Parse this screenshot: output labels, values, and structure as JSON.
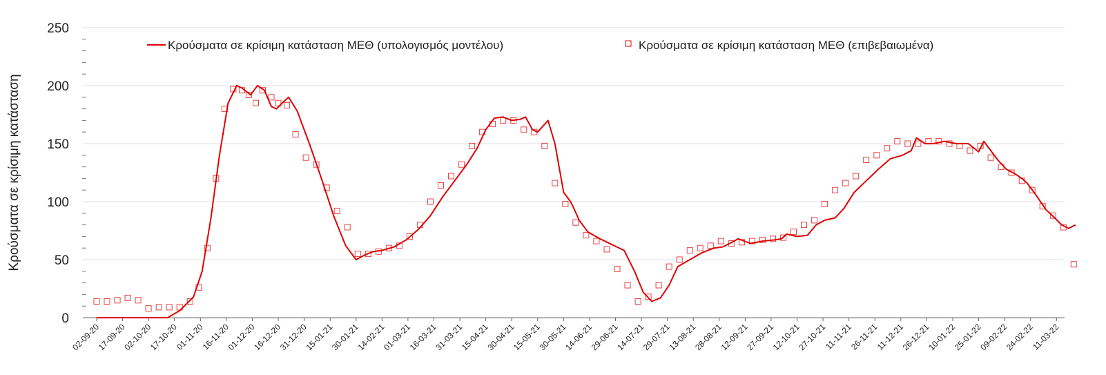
{
  "chart_data": {
    "type": "line",
    "title": "",
    "xlabel": "",
    "ylabel": "Κρούσματα σε κρίσιμη κατάσταση",
    "ylim": [
      0,
      250
    ],
    "yticks": [
      0,
      50,
      100,
      150,
      200,
      250
    ],
    "grid": true,
    "legend_position": "top",
    "xlim": [
      "2020-09-02",
      "2022-03-22"
    ],
    "xtick_labels": [
      "02-09-20",
      "17-09-20",
      "02-10-20",
      "17-10-20",
      "01-11-20",
      "16-11-20",
      "01-12-20",
      "16-12-20",
      "31-12-20",
      "15-01-21",
      "30-01-21",
      "14-02-21",
      "01-03-21",
      "16-03-21",
      "31-03-21",
      "15-04-21",
      "30-04-21",
      "15-05-21",
      "30-05-21",
      "14-06-21",
      "29-06-21",
      "14-07-21",
      "29-07-21",
      "13-08-21",
      "28-08-21",
      "12-09-21",
      "27-09-21",
      "12-10-21",
      "27-10-21",
      "11-11-21",
      "26-11-21",
      "11-12-21",
      "26-12-21",
      "10-01-22",
      "25-01-22",
      "09-02-22",
      "24-02-22",
      "11-03-22"
    ],
    "series": [
      {
        "name": "Κρούσματα σε κρίσιμη κατάσταση ΜΕΘ (υπολογισμός μοντέλου)",
        "style": "line",
        "color": "#e00000",
        "x": [
          "2020-09-02",
          "2020-10-13",
          "2020-10-20",
          "2020-10-28",
          "2020-11-02",
          "2020-11-07",
          "2020-11-12",
          "2020-11-17",
          "2020-11-22",
          "2020-11-25",
          "2020-11-30",
          "2020-12-04",
          "2020-12-08",
          "2020-12-12",
          "2020-12-15",
          "2020-12-19",
          "2020-12-22",
          "2020-12-27",
          "2021-01-03",
          "2021-01-10",
          "2021-01-17",
          "2021-01-24",
          "2021-01-30",
          "2021-02-04",
          "2021-02-09",
          "2021-02-14",
          "2021-02-21",
          "2021-02-28",
          "2021-03-07",
          "2021-03-14",
          "2021-03-21",
          "2021-03-28",
          "2021-04-04",
          "2021-04-10",
          "2021-04-15",
          "2021-04-20",
          "2021-04-25",
          "2021-04-30",
          "2021-05-05",
          "2021-05-08",
          "2021-05-12",
          "2021-05-15",
          "2021-05-18",
          "2021-05-21",
          "2021-05-25",
          "2021-05-30",
          "2021-06-03",
          "2021-06-05",
          "2021-06-08",
          "2021-06-13",
          "2021-06-20",
          "2021-06-27",
          "2021-07-04",
          "2021-07-10",
          "2021-07-15",
          "2021-07-20",
          "2021-07-25",
          "2021-07-30",
          "2021-08-04",
          "2021-08-11",
          "2021-08-18",
          "2021-08-25",
          "2021-08-30",
          "2021-09-03",
          "2021-09-08",
          "2021-09-15",
          "2021-09-22",
          "2021-09-29",
          "2021-10-03",
          "2021-10-06",
          "2021-10-12",
          "2021-10-18",
          "2021-10-23",
          "2021-10-28",
          "2021-11-03",
          "2021-11-08",
          "2021-11-14",
          "2021-11-21",
          "2021-11-28",
          "2021-12-05",
          "2021-12-12",
          "2021-12-17",
          "2021-12-20",
          "2021-12-25",
          "2021-12-30",
          "2022-01-05",
          "2022-01-12",
          "2022-01-19",
          "2022-01-25",
          "2022-01-28",
          "2022-02-01",
          "2022-02-05",
          "2022-02-10",
          "2022-02-15",
          "2022-02-19",
          "2022-02-22",
          "2022-02-27",
          "2022-03-05",
          "2022-03-10",
          "2022-03-14",
          "2022-03-18",
          "2022-03-22"
        ],
        "y": [
          0,
          0,
          6,
          18,
          40,
          85,
          140,
          185,
          200,
          198,
          192,
          200,
          196,
          182,
          180,
          186,
          190,
          178,
          150,
          120,
          88,
          62,
          50,
          54,
          57,
          58,
          61,
          67,
          76,
          88,
          104,
          118,
          132,
          146,
          162,
          172,
          173,
          170,
          171,
          173,
          162,
          160,
          165,
          170,
          150,
          108,
          100,
          94,
          84,
          74,
          68,
          63,
          58,
          40,
          22,
          14,
          17,
          28,
          44,
          50,
          56,
          60,
          61,
          64,
          68,
          64,
          66,
          67,
          68,
          72,
          70,
          71,
          80,
          84,
          86,
          94,
          108,
          118,
          128,
          137,
          140,
          144,
          155,
          150,
          150,
          152,
          150,
          150,
          143,
          152,
          144,
          136,
          128,
          124,
          120,
          116,
          106,
          93,
          86,
          80,
          77,
          80
        ]
      },
      {
        "name": "Κρούσματα σε κρίσιμη κατάσταση ΜΕΘ (επιβεβαιωμένα)",
        "style": "marker",
        "marker": "square",
        "color": "#e00000",
        "x": [
          "2020-09-02",
          "2020-09-08",
          "2020-09-14",
          "2020-09-20",
          "2020-09-26",
          "2020-10-02",
          "2020-10-08",
          "2020-10-14",
          "2020-10-20",
          "2020-10-26",
          "2020-10-31",
          "2020-11-05",
          "2020-11-10",
          "2020-11-15",
          "2020-11-20",
          "2020-11-25",
          "2020-11-29",
          "2020-12-03",
          "2020-12-07",
          "2020-12-12",
          "2020-12-16",
          "2020-12-21",
          "2020-12-26",
          "2021-01-01",
          "2021-01-07",
          "2021-01-13",
          "2021-01-19",
          "2021-01-25",
          "2021-01-31",
          "2021-02-06",
          "2021-02-12",
          "2021-02-18",
          "2021-02-24",
          "2021-03-02",
          "2021-03-08",
          "2021-03-14",
          "2021-03-20",
          "2021-03-26",
          "2021-04-01",
          "2021-04-07",
          "2021-04-13",
          "2021-04-19",
          "2021-04-25",
          "2021-05-01",
          "2021-05-07",
          "2021-05-13",
          "2021-05-19",
          "2021-05-25",
          "2021-05-31",
          "2021-06-06",
          "2021-06-12",
          "2021-06-18",
          "2021-06-24",
          "2021-06-30",
          "2021-07-06",
          "2021-07-12",
          "2021-07-18",
          "2021-07-24",
          "2021-07-30",
          "2021-08-05",
          "2021-08-11",
          "2021-08-17",
          "2021-08-23",
          "2021-08-29",
          "2021-09-04",
          "2021-09-10",
          "2021-09-16",
          "2021-09-22",
          "2021-09-28",
          "2021-10-04",
          "2021-10-10",
          "2021-10-16",
          "2021-10-22",
          "2021-10-28",
          "2021-11-03",
          "2021-11-09",
          "2021-11-15",
          "2021-11-21",
          "2021-11-27",
          "2021-12-03",
          "2021-12-09",
          "2021-12-15",
          "2021-12-21",
          "2021-12-27",
          "2022-01-02",
          "2022-01-08",
          "2022-01-14",
          "2022-01-20",
          "2022-01-26",
          "2022-02-01",
          "2022-02-07",
          "2022-02-13",
          "2022-02-19",
          "2022-02-25",
          "2022-03-03",
          "2022-03-09",
          "2022-03-15",
          "2022-03-21"
        ],
        "y": [
          14,
          14,
          15,
          17,
          15,
          8,
          9,
          9,
          9,
          14,
          26,
          60,
          120,
          180,
          197,
          196,
          192,
          185,
          196,
          190,
          185,
          183,
          158,
          138,
          132,
          112,
          92,
          78,
          55,
          55,
          57,
          60,
          62,
          70,
          80,
          100,
          114,
          122,
          132,
          148,
          160,
          167,
          170,
          170,
          162,
          160,
          148,
          116,
          98,
          82,
          71,
          66,
          59,
          42,
          28,
          14,
          18,
          28,
          44,
          50,
          58,
          60,
          62,
          66,
          64,
          65,
          66,
          67,
          68,
          69,
          74,
          80,
          84,
          98,
          110,
          116,
          122,
          136,
          140,
          146,
          152,
          150,
          150,
          152,
          152,
          150,
          148,
          144,
          148,
          138,
          130,
          125,
          118,
          110,
          96,
          88,
          78,
          46
        ]
      }
    ]
  }
}
